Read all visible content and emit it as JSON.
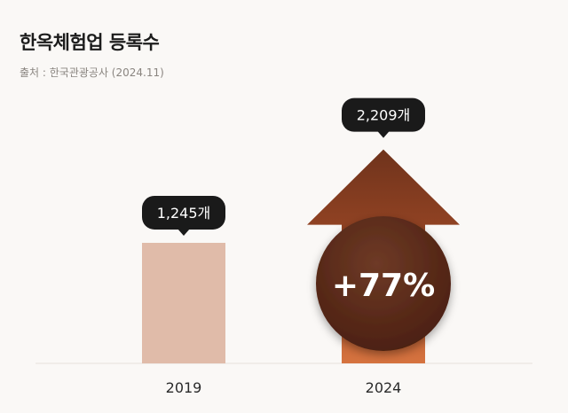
{
  "header": {
    "title": "한옥체험업 등록수",
    "source": "출처 : 한국관광공사 (2024.11)"
  },
  "colors": {
    "background": "#faf8f6",
    "bar_2019": "#e0bba9",
    "arrow_top": "#7a3a1f",
    "arrow_bottom": "#d2703e",
    "callout": "#1a1a1a",
    "circle": "#5a2a18"
  },
  "chart_data": {
    "type": "bar",
    "title": "한옥체험업 등록수",
    "categories": [
      "2019",
      "2024"
    ],
    "values": [
      1245,
      2209
    ],
    "value_labels": [
      "1,245개",
      "2,209개"
    ],
    "unit": "개",
    "change_label": "+77%",
    "ylim": [
      0,
      2380
    ],
    "grid": false
  }
}
